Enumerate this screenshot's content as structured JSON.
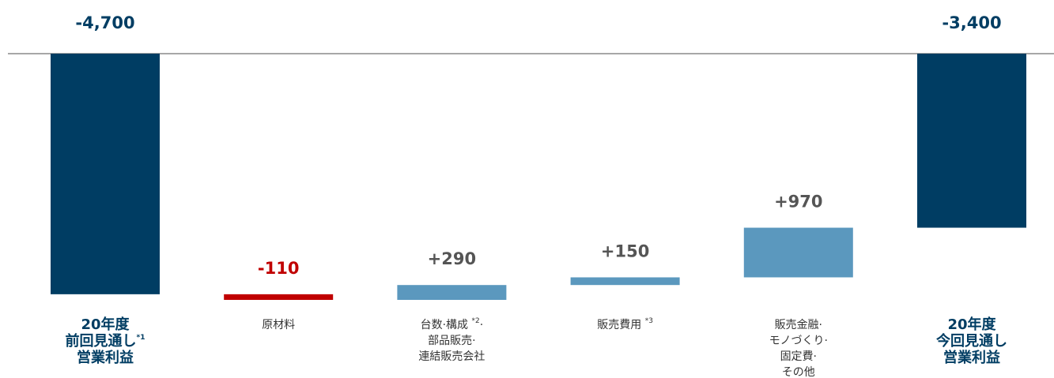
{
  "chart_data": {
    "type": "waterfall",
    "categories": [
      [
        "20年度",
        "前回見通し*1",
        "営業利益"
      ],
      [
        "原材料"
      ],
      [
        "台数·構成 *2·",
        "部品販売·",
        "連結販売会社"
      ],
      [
        "販売費用 *3"
      ],
      [
        "販売金融·",
        "モノづくり·",
        "固定費·",
        "その他"
      ],
      [
        "20年度",
        "今回見通し",
        "営業利益"
      ]
    ],
    "values": [
      -4700,
      -110,
      290,
      150,
      970,
      -3400
    ],
    "value_labels": [
      "-4,700",
      "-110",
      "+290",
      "+150",
      "+970",
      "-3,400"
    ],
    "totals": [
      true,
      false,
      false,
      false,
      false,
      true
    ],
    "colors": {
      "total": "#003d63",
      "increase": "#5b98be",
      "decrease": "#c00000"
    },
    "label_colors": {
      "total": "#003d63",
      "increase": "#555555",
      "decrease": "#c00000"
    }
  }
}
